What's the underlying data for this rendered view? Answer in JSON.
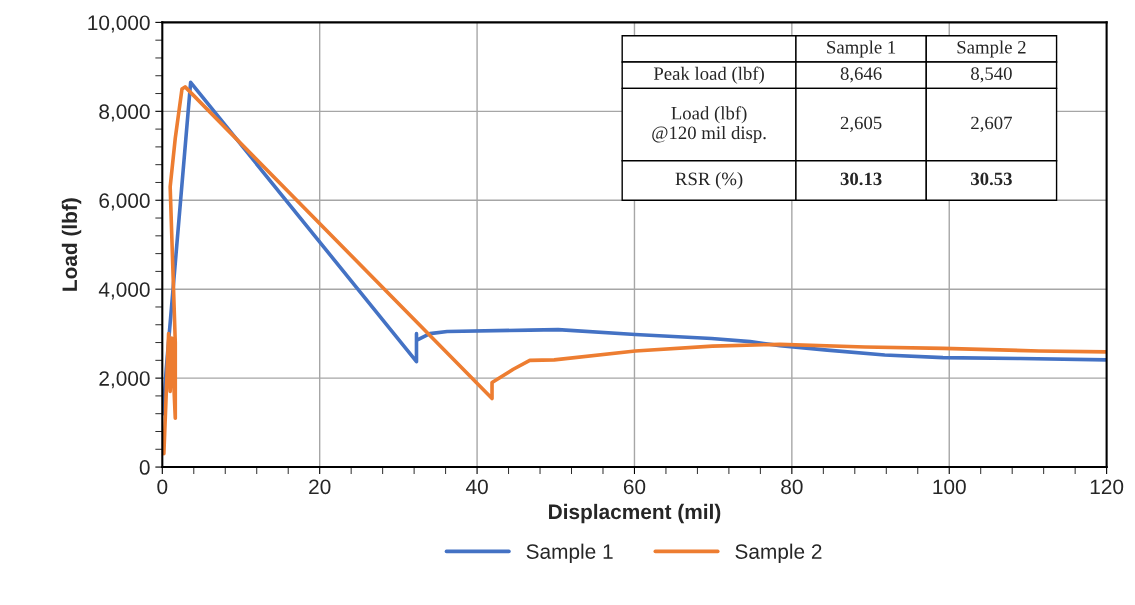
{
  "chart_data": {
    "type": "line",
    "xlabel": "Displacment (mil)",
    "ylabel": "Load (lbf)",
    "xlim": [
      0,
      120
    ],
    "xticks": [
      0,
      20,
      40,
      60,
      80,
      100,
      120
    ],
    "ylim": [
      0,
      10000
    ],
    "yticks": [
      {
        "value": 0,
        "label": "0"
      },
      {
        "value": 2000,
        "label": "2,000"
      },
      {
        "value": 4000,
        "label": "4,000"
      },
      {
        "value": 6000,
        "label": "6,000"
      },
      {
        "value": 8000,
        "label": "8,000"
      },
      {
        "value": 10000,
        "label": "10,000"
      }
    ],
    "grid": true,
    "legend": "bottom",
    "line_style": "solid",
    "marker": "none",
    "series": [
      {
        "name": "Sample 1",
        "color": "#4472c4",
        "x": [
          0.1,
          0.5,
          3.6,
          32.3,
          32.3,
          32.3,
          34,
          36.2,
          46.7,
          50.3,
          60.1,
          69.8,
          74.7,
          78.5,
          84.5,
          91.8,
          99.2,
          109,
          120
        ],
        "values": [
          1200,
          2200,
          8650,
          2370,
          3000,
          2850,
          3000,
          3050,
          3080,
          3090,
          2980,
          2890,
          2820,
          2730,
          2630,
          2520,
          2460,
          2440,
          2410
        ]
      },
      {
        "name": "Sample 2",
        "color": "#ed7d31",
        "x": [
          0.2,
          0.8,
          1.0,
          1.2,
          1.65,
          1.65,
          1.0,
          1.65,
          2.5,
          2.9,
          41.9,
          41.9,
          44.6,
          46.7,
          49.8,
          60.1,
          69.9,
          78.5,
          89.3,
          99.2,
          111.4,
          120
        ],
        "values": [
          300,
          3000,
          1700,
          2900,
          1100,
          2800,
          6300,
          7400,
          8500,
          8550,
          1540,
          1900,
          2200,
          2400,
          2410,
          2610,
          2720,
          2760,
          2700,
          2670,
          2610,
          2590
        ]
      }
    ],
    "annotations": [
      "Sample 1",
      "Sample 2",
      "Peak load (lbf)",
      "8,646",
      "8,540",
      "Load (lbf)\n@120 mil disp.",
      "2,605",
      "2,607",
      "RSR (%)",
      "30.13",
      "30.53"
    ]
  }
}
